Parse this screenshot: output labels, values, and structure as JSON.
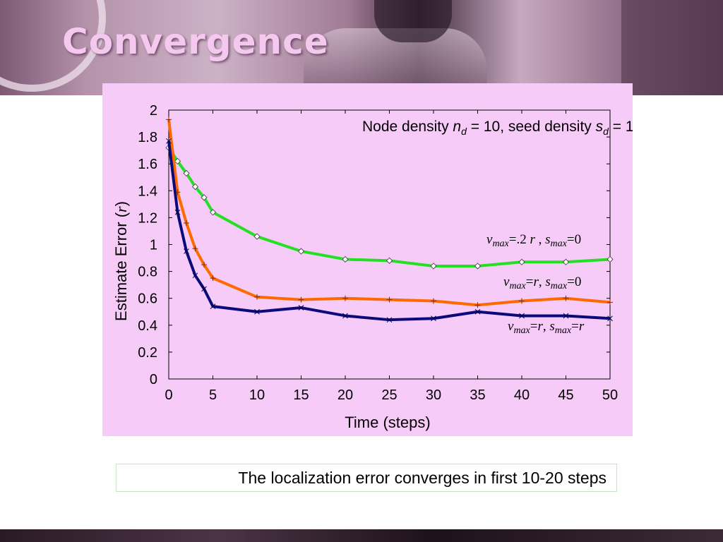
{
  "slide": {
    "title": "Convergence",
    "caption": "The localization error converges in first 10-20 steps"
  },
  "colors": {
    "panel": "#f7cbf7",
    "title": "#f5c8ef",
    "green": "#22e022",
    "orange": "#ff6a00",
    "navy": "#0a0a7a"
  },
  "chart_data": {
    "type": "line",
    "annotation": "Node density nd = 10, seed density sd = 1",
    "xlabel": "Time (steps)",
    "ylabel": "Estimate Error (r)",
    "xlim": [
      0,
      50
    ],
    "ylim": [
      0,
      2
    ],
    "xticks": [
      0,
      5,
      10,
      15,
      20,
      25,
      30,
      35,
      40,
      45,
      50
    ],
    "yticks": [
      "0",
      "0.2",
      "0.4",
      "0.6",
      "0.8",
      "1",
      "1.2",
      "1.4",
      "1.6",
      "1.8",
      "2"
    ],
    "grid": false,
    "series": [
      {
        "name": "vmax=.2 r, smax=0",
        "color": "#22e022",
        "marker": "diamond",
        "x": [
          0,
          1,
          2,
          3,
          4,
          5,
          10,
          15,
          20,
          25,
          30,
          35,
          40,
          45,
          50
        ],
        "y": [
          1.72,
          1.62,
          1.53,
          1.43,
          1.35,
          1.24,
          1.06,
          0.95,
          0.89,
          0.88,
          0.84,
          0.84,
          0.87,
          0.87,
          0.89
        ]
      },
      {
        "name": "vmax=r, smax=0",
        "color": "#ff6a00",
        "marker": "plus",
        "x": [
          0,
          1,
          2,
          3,
          4,
          5,
          10,
          15,
          20,
          25,
          30,
          35,
          40,
          45,
          50
        ],
        "y": [
          1.93,
          1.39,
          1.16,
          0.97,
          0.85,
          0.75,
          0.61,
          0.59,
          0.6,
          0.59,
          0.58,
          0.55,
          0.58,
          0.6,
          0.57
        ]
      },
      {
        "name": "vmax=r, smax=r",
        "color": "#0a0a7a",
        "marker": "x",
        "x": [
          0,
          1,
          2,
          3,
          4,
          5,
          10,
          15,
          20,
          25,
          30,
          35,
          40,
          45,
          50
        ],
        "y": [
          1.77,
          1.24,
          0.95,
          0.77,
          0.67,
          0.54,
          0.5,
          0.53,
          0.47,
          0.44,
          0.45,
          0.5,
          0.47,
          0.47,
          0.45
        ]
      }
    ],
    "labels": {
      "green": {
        "v": "v",
        "vsub": "max",
        "veq": "=.2 ",
        "r": "r",
        "sep": " , ",
        "s": "s",
        "ssub": "max",
        "seq": "=0"
      },
      "orange": {
        "v": "v",
        "vsub": "max",
        "veq": "=",
        "r": "r",
        "sep": ", ",
        "s": "s",
        "ssub": "max",
        "seq": "=0"
      },
      "navy": {
        "v": "v",
        "vsub": "max",
        "veq": "=",
        "r": "r",
        "sep": ", ",
        "s": "s",
        "ssub": "max",
        "seq": "=r"
      }
    }
  }
}
